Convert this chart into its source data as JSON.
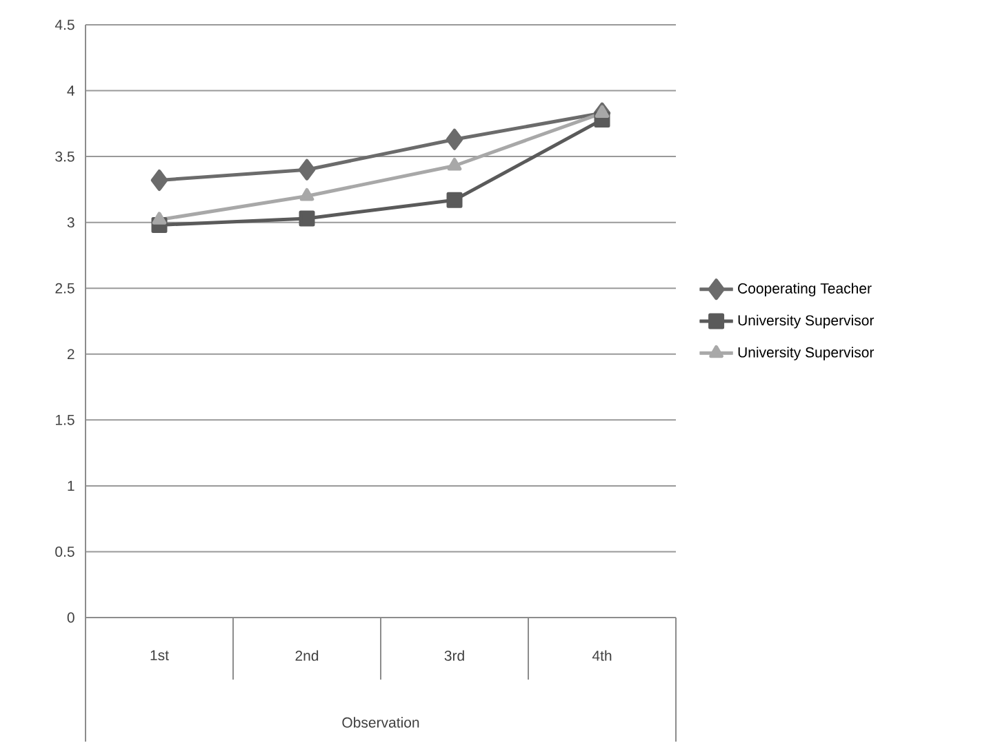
{
  "chart_data": {
    "type": "line",
    "xlabel": "Observation",
    "categories": [
      "1st",
      "2nd",
      "3rd",
      "4th"
    ],
    "series": [
      {
        "name": "Cooperating Teacher",
        "color": "#6b6b6b",
        "marker": "diamond",
        "values": [
          3.32,
          3.4,
          3.63,
          3.83
        ]
      },
      {
        "name": "University Supervisor",
        "color": "#5a5a5a",
        "marker": "square",
        "values": [
          2.98,
          3.03,
          3.17,
          3.78
        ]
      },
      {
        "name": "University Supervisor",
        "color": "#a8a8a8",
        "marker": "triangle",
        "values": [
          3.02,
          3.2,
          3.43,
          3.83
        ]
      }
    ],
    "ylim": [
      0,
      4.5
    ],
    "yticks": [
      0,
      0.5,
      1,
      1.5,
      2,
      2.5,
      3,
      3.5,
      4,
      4.5
    ],
    "grid": "y",
    "legend": "right",
    "line_style": "solid"
  }
}
